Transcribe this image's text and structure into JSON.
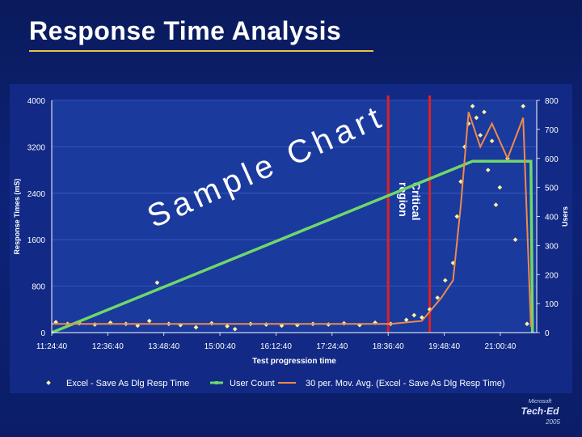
{
  "slide": {
    "title": "Response Time Analysis"
  },
  "branding": {
    "logo_text": [
      "Microsoft",
      "Tech·Ed",
      "2005"
    ]
  },
  "chart_data": {
    "type": "scatter",
    "watermark": "Sample Chart",
    "xlabel": "Test progression time",
    "ylabel": "Response Times (mS)",
    "y2label": "Users",
    "x_ticks": [
      "11:24:40",
      "12:36:40",
      "13:48:40",
      "15:00:40",
      "16:12:40",
      "17:24:40",
      "18:36:40",
      "19:48:40",
      "21:00:40"
    ],
    "y_ticks": [
      0,
      800,
      1600,
      2400,
      3200,
      4000
    ],
    "y2_ticks": [
      0,
      100,
      200,
      300,
      400,
      500,
      600,
      700,
      800
    ],
    "ylim": [
      0,
      4000
    ],
    "y2lim": [
      0,
      800
    ],
    "annotation": {
      "text": [
        "Critical",
        "region"
      ],
      "x_start": "18:36:40",
      "x_end": "19:30:00"
    },
    "legend_position": "bottom",
    "grid": true,
    "series": [
      {
        "name": "Excel - Save As Dlg Resp Time",
        "kind": "scatter",
        "color": "#fff3a0",
        "axis": "left",
        "points": [
          [
            "11:30:00",
            180
          ],
          [
            "11:45:00",
            150
          ],
          [
            "12:00:00",
            160
          ],
          [
            "12:20:00",
            140
          ],
          [
            "12:40:00",
            170
          ],
          [
            "13:00:00",
            150
          ],
          [
            "13:15:00",
            120
          ],
          [
            "13:30:00",
            200
          ],
          [
            "13:55:00",
            150
          ],
          [
            "14:10:00",
            130
          ],
          [
            "14:30:00",
            90
          ],
          [
            "14:50:00",
            160
          ],
          [
            "15:10:00",
            110
          ],
          [
            "15:20:00",
            60
          ],
          [
            "15:40:00",
            150
          ],
          [
            "16:00:00",
            140
          ],
          [
            "16:20:00",
            120
          ],
          [
            "16:40:00",
            130
          ],
          [
            "17:00:00",
            150
          ],
          [
            "17:20:00",
            140
          ],
          [
            "17:40:00",
            160
          ],
          [
            "18:00:00",
            130
          ],
          [
            "18:20:00",
            170
          ],
          [
            "18:40:00",
            150
          ],
          [
            "19:00:00",
            220
          ],
          [
            "19:10:00",
            300
          ],
          [
            "19:20:00",
            260
          ],
          [
            "19:30:00",
            400
          ],
          [
            "19:40:00",
            600
          ],
          [
            "19:50:00",
            900
          ],
          [
            "20:00:00",
            1200
          ],
          [
            "20:05:00",
            2000
          ],
          [
            "20:10:00",
            2600
          ],
          [
            "20:15:00",
            3200
          ],
          [
            "20:20:00",
            3600
          ],
          [
            "20:25:00",
            3900
          ],
          [
            "20:30:00",
            3700
          ],
          [
            "20:35:00",
            3400
          ],
          [
            "20:40:00",
            3800
          ],
          [
            "20:45:00",
            2800
          ],
          [
            "20:50:00",
            3300
          ],
          [
            "20:55:00",
            2200
          ],
          [
            "21:00:00",
            2500
          ],
          [
            "21:10:00",
            3000
          ],
          [
            "21:20:00",
            1600
          ],
          [
            "21:30:00",
            3900
          ],
          [
            "21:35:00",
            150
          ],
          [
            "13:40:00",
            860
          ]
        ]
      },
      {
        "name": "User Count",
        "kind": "line",
        "color": "#6fd86a",
        "axis": "right",
        "points": [
          [
            "11:24:40",
            0
          ],
          [
            "20:25:00",
            590
          ],
          [
            "21:40:00",
            590
          ],
          [
            "21:42:00",
            0
          ]
        ]
      },
      {
        "name": "30 per. Mov. Avg. (Excel - Save As Dlg Resp Time)",
        "kind": "line",
        "color": "#f08a4a",
        "axis": "left",
        "points": [
          [
            "11:24:40",
            150
          ],
          [
            "18:40:00",
            150
          ],
          [
            "19:20:00",
            200
          ],
          [
            "19:45:00",
            600
          ],
          [
            "20:00:00",
            900
          ],
          [
            "20:10:00",
            2200
          ],
          [
            "20:20:00",
            3800
          ],
          [
            "20:35:00",
            3200
          ],
          [
            "20:50:00",
            3600
          ],
          [
            "21:10:00",
            3000
          ],
          [
            "21:30:00",
            3700
          ],
          [
            "21:40:00",
            100
          ]
        ]
      }
    ]
  }
}
